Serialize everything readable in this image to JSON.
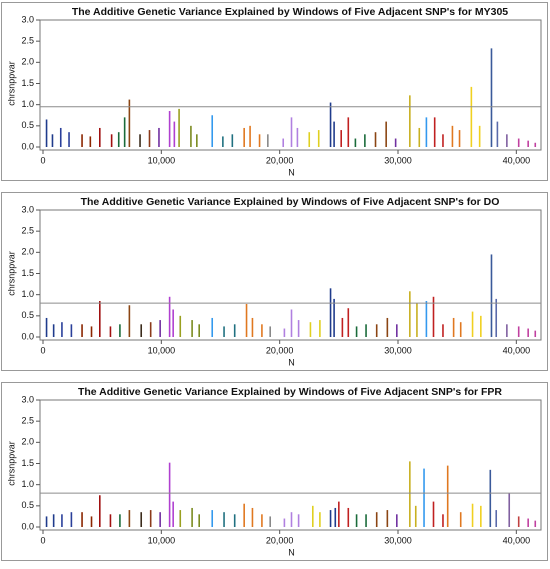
{
  "chart_data": [
    {
      "type": "bar",
      "title": "The Additive Genetic Variance Explained by Windows of Five Adjacent SNP's for MY305",
      "y_label": "chrsnppvar",
      "x_label": "N",
      "xlim": [
        0,
        42000
      ],
      "ylim": [
        0,
        3
      ],
      "xticks": [
        0,
        {
          "value": 10000,
          "label": "10,000"
        },
        {
          "value": 20000,
          "label": "20,000"
        },
        {
          "value": 30000,
          "label": "30,000"
        },
        {
          "value": 40000,
          "label": "40,000"
        }
      ],
      "yticks": [
        {
          "value": 0,
          "label": "0.0"
        },
        {
          "value": 0.5,
          "label": "0.5"
        },
        {
          "value": 1,
          "label": "1.0"
        },
        {
          "value": 1.5,
          "label": "1.5"
        },
        {
          "value": 2,
          "label": "2.0"
        },
        {
          "value": 2.5,
          "label": "2.5"
        },
        {
          "value": 3,
          "label": "3.0"
        }
      ],
      "reference_line": 0.95,
      "reference_color": "#8c8c8c",
      "x": [
        300,
        800,
        1500,
        2200,
        3300,
        4000,
        4800,
        5800,
        6400,
        6900,
        7300,
        8200,
        9000,
        9800,
        10700,
        11100,
        11500,
        12500,
        13000,
        14300,
        15200,
        16000,
        17000,
        17500,
        18300,
        19000,
        20300,
        21000,
        21500,
        22500,
        23300,
        24300,
        24600,
        25200,
        25800,
        26400,
        27200,
        28100,
        29000,
        29800,
        31000,
        31800,
        32400,
        33100,
        33800,
        34600,
        35200,
        36200,
        36900,
        37900,
        38400,
        39200,
        40200,
        41000,
        41600
      ],
      "values": [
        0.65,
        0.3,
        0.45,
        0.35,
        0.3,
        0.25,
        0.45,
        0.3,
        0.35,
        0.7,
        1.12,
        0.3,
        0.4,
        0.45,
        0.85,
        0.6,
        0.9,
        0.5,
        0.3,
        0.75,
        0.25,
        0.3,
        0.45,
        0.5,
        0.3,
        0.3,
        0.2,
        0.7,
        0.45,
        0.35,
        0.4,
        1.05,
        0.6,
        0.4,
        0.7,
        0.2,
        0.3,
        0.35,
        0.6,
        0.2,
        1.22,
        0.45,
        0.7,
        0.7,
        0.3,
        0.5,
        0.4,
        1.42,
        0.5,
        2.33,
        0.6,
        0.3,
        0.2,
        0.15,
        0.1
      ],
      "colors": [
        "#1f3b8c",
        "#1f3b8c",
        "#2a3f9a",
        "#2a3f9a",
        "#8b2500",
        "#8b2500",
        "#a01010",
        "#a01010",
        "#1a6b3a",
        "#1a6b3a",
        "#8b4513",
        "#3a2a1a",
        "#8b3a1a",
        "#7030a0",
        "#b040d0",
        "#b040d0",
        "#9aa020",
        "#7a8a20",
        "#7a8a20",
        "#3399ee",
        "#207080",
        "#207080",
        "#e07820",
        "#e07820",
        "#e07820",
        "#888888",
        "#b080e0",
        "#b080e0",
        "#b080e0",
        "#e0d020",
        "#e0d020",
        "#1f3b8c",
        "#1f3b8c",
        "#c02020",
        "#c02020",
        "#1a6b3a",
        "#1a6b3a",
        "#8b4513",
        "#8b4513",
        "#7030a0",
        "#c8b020",
        "#c8b020",
        "#3399ee",
        "#c02020",
        "#c02020",
        "#e07820",
        "#e07820",
        "#f0d020",
        "#f0d020",
        "#3a5a9a",
        "#5a6aaa",
        "#8060a0",
        "#c040a0",
        "#c040a0",
        "#c040a0"
      ]
    },
    {
      "type": "bar",
      "title": "The Additive Genetic Variance Explained by Windows of Five Adjacent SNP's for DO",
      "y_label": "chrsnppvar",
      "x_label": "N",
      "xlim": [
        0,
        42000
      ],
      "ylim": [
        0,
        3
      ],
      "xticks": [
        0,
        {
          "value": 10000,
          "label": "10,000"
        },
        {
          "value": 20000,
          "label": "20,000"
        },
        {
          "value": 30000,
          "label": "30,000"
        },
        {
          "value": 40000,
          "label": "40,000"
        }
      ],
      "yticks": [
        {
          "value": 0,
          "label": "0.0"
        },
        {
          "value": 0.5,
          "label": "0.5"
        },
        {
          "value": 1,
          "label": "1.0"
        },
        {
          "value": 1.5,
          "label": "1.5"
        },
        {
          "value": 2,
          "label": "2.0"
        },
        {
          "value": 2.5,
          "label": "2.5"
        },
        {
          "value": 3,
          "label": "3.0"
        }
      ],
      "reference_line": 0.8,
      "reference_color": "#8c8c8c",
      "x": [
        300,
        900,
        1600,
        2400,
        3300,
        4100,
        4800,
        5700,
        6500,
        7300,
        8300,
        9100,
        9900,
        10700,
        11000,
        11600,
        12600,
        13200,
        14300,
        15300,
        16200,
        17200,
        17700,
        18500,
        19200,
        20400,
        21000,
        21600,
        22600,
        23400,
        24300,
        24600,
        25300,
        25800,
        26500,
        27300,
        28200,
        29100,
        29900,
        31000,
        31600,
        32400,
        33000,
        33800,
        34700,
        35300,
        36300,
        37000,
        37900,
        38300,
        39200,
        40200,
        41000,
        41600
      ],
      "values": [
        0.45,
        0.3,
        0.35,
        0.3,
        0.3,
        0.25,
        0.85,
        0.25,
        0.3,
        0.75,
        0.3,
        0.35,
        0.4,
        0.95,
        0.65,
        0.5,
        0.4,
        0.3,
        0.45,
        0.25,
        0.3,
        0.78,
        0.45,
        0.3,
        0.25,
        0.2,
        0.65,
        0.4,
        0.35,
        0.4,
        1.15,
        0.9,
        0.45,
        0.68,
        0.25,
        0.3,
        0.3,
        0.45,
        0.3,
        1.08,
        0.8,
        0.85,
        0.95,
        0.3,
        0.45,
        0.35,
        0.6,
        0.5,
        1.95,
        0.9,
        0.3,
        0.25,
        0.2,
        0.15
      ],
      "colors": [
        "#1f3b8c",
        "#1f3b8c",
        "#2a3f9a",
        "#2a3f9a",
        "#8b2500",
        "#8b2500",
        "#a01010",
        "#a01010",
        "#1a6b3a",
        "#8b4513",
        "#3a2a1a",
        "#8b3a1a",
        "#7030a0",
        "#b040d0",
        "#b040d0",
        "#9aa020",
        "#7a8a20",
        "#7a8a20",
        "#3399ee",
        "#207080",
        "#207080",
        "#e07820",
        "#e07820",
        "#e07820",
        "#888888",
        "#b080e0",
        "#b080e0",
        "#b080e0",
        "#e0d020",
        "#e0d020",
        "#1f3b8c",
        "#1f3b8c",
        "#c02020",
        "#c02020",
        "#1a6b3a",
        "#1a6b3a",
        "#8b4513",
        "#8b4513",
        "#7030a0",
        "#c8b020",
        "#c8b020",
        "#3399ee",
        "#c02020",
        "#c02020",
        "#e07820",
        "#e07820",
        "#f0d020",
        "#f0d020",
        "#3a5a9a",
        "#5a6aaa",
        "#8060a0",
        "#c040a0",
        "#c040a0",
        "#c040a0"
      ]
    },
    {
      "type": "bar",
      "title": "The Additive Genetic Variance Explained by Windows of Five Adjacent SNP's for FPR",
      "y_label": "chrsnppvar",
      "x_label": "N",
      "xlim": [
        0,
        42000
      ],
      "ylim": [
        0,
        3
      ],
      "xticks": [
        0,
        {
          "value": 10000,
          "label": "10,000"
        },
        {
          "value": 20000,
          "label": "20,000"
        },
        {
          "value": 30000,
          "label": "30,000"
        },
        {
          "value": 40000,
          "label": "40,000"
        }
      ],
      "yticks": [
        {
          "value": 0,
          "label": "0.0"
        },
        {
          "value": 0.5,
          "label": "0.5"
        },
        {
          "value": 1,
          "label": "1.0"
        },
        {
          "value": 1.5,
          "label": "1.5"
        },
        {
          "value": 2,
          "label": "2.0"
        },
        {
          "value": 2.5,
          "label": "2.5"
        },
        {
          "value": 3,
          "label": "3.0"
        }
      ],
      "reference_line": 0.8,
      "reference_color": "#8c8c8c",
      "x": [
        300,
        900,
        1600,
        2400,
        3300,
        4100,
        4800,
        5700,
        6500,
        7300,
        8300,
        9100,
        9900,
        10700,
        11000,
        11600,
        12600,
        13200,
        14300,
        15300,
        16200,
        17000,
        17700,
        18500,
        19200,
        20400,
        21000,
        21600,
        22800,
        23400,
        24300,
        24700,
        25000,
        25800,
        26500,
        27300,
        28200,
        29100,
        29900,
        31000,
        31500,
        32200,
        33000,
        33800,
        34200,
        35300,
        36300,
        37000,
        37800,
        38300,
        39400,
        40200,
        41000,
        41600
      ],
      "values": [
        0.25,
        0.3,
        0.3,
        0.35,
        0.35,
        0.25,
        0.75,
        0.3,
        0.3,
        0.4,
        0.35,
        0.4,
        0.35,
        1.52,
        0.6,
        0.4,
        0.45,
        0.3,
        0.4,
        0.35,
        0.3,
        0.55,
        0.45,
        0.3,
        0.25,
        0.2,
        0.35,
        0.3,
        0.5,
        0.35,
        0.4,
        0.45,
        0.6,
        0.45,
        0.3,
        0.3,
        0.35,
        0.4,
        0.3,
        1.55,
        0.5,
        1.38,
        0.6,
        0.3,
        1.45,
        0.35,
        0.55,
        0.5,
        1.35,
        0.4,
        0.8,
        0.25,
        0.2,
        0.15
      ],
      "colors": [
        "#1f3b8c",
        "#1f3b8c",
        "#2a3f9a",
        "#2a3f9a",
        "#8b2500",
        "#8b2500",
        "#a01010",
        "#a01010",
        "#1a6b3a",
        "#8b4513",
        "#3a2a1a",
        "#8b3a1a",
        "#7030a0",
        "#b040d0",
        "#b040d0",
        "#9aa020",
        "#7a8a20",
        "#7a8a20",
        "#3399ee",
        "#207080",
        "#207080",
        "#e07820",
        "#e07820",
        "#e07820",
        "#888888",
        "#b080e0",
        "#b080e0",
        "#b080e0",
        "#e0d020",
        "#e0d020",
        "#1f3b8c",
        "#1f3b8c",
        "#c02020",
        "#c02020",
        "#1a6b3a",
        "#1a6b3a",
        "#8b4513",
        "#8b4513",
        "#7030a0",
        "#c8b020",
        "#c8b020",
        "#3399ee",
        "#c02020",
        "#c02020",
        "#e07820",
        "#e07820",
        "#f0d020",
        "#f0d020",
        "#3a5a9a",
        "#5a6aaa",
        "#8060a0",
        "#c04040",
        "#c040a0",
        "#c040a0"
      ]
    }
  ]
}
